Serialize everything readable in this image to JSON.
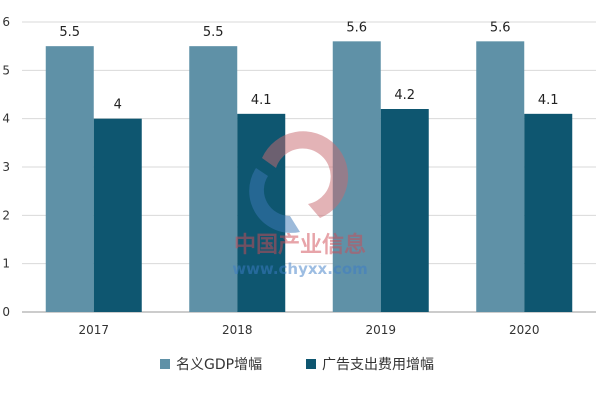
{
  "chart_data": {
    "type": "bar",
    "title": "",
    "xlabel": "",
    "ylabel": "",
    "categories": [
      "2017",
      "2018",
      "2019",
      "2020"
    ],
    "series": [
      {
        "name": "名义GDP增幅",
        "values": [
          5.5,
          5.5,
          5.6,
          5.6
        ],
        "value_labels": [
          "5.5",
          "5.5",
          "5.6",
          "5.6"
        ],
        "color": "#5f91a7"
      },
      {
        "name": "广告支出费用增幅",
        "values": [
          4,
          4.1,
          4.2,
          4.1
        ],
        "value_labels": [
          "4",
          "4.1",
          "4.2",
          "4.1"
        ],
        "color": "#0e5670"
      }
    ],
    "ylim": [
      0,
      6
    ],
    "yticks": [
      0,
      1,
      2,
      3,
      4,
      5,
      6
    ],
    "grid": true,
    "legend_position": "bottom"
  },
  "watermark": {
    "cn_text": "中国产业信息",
    "url_text": "www.chyxx.com"
  }
}
